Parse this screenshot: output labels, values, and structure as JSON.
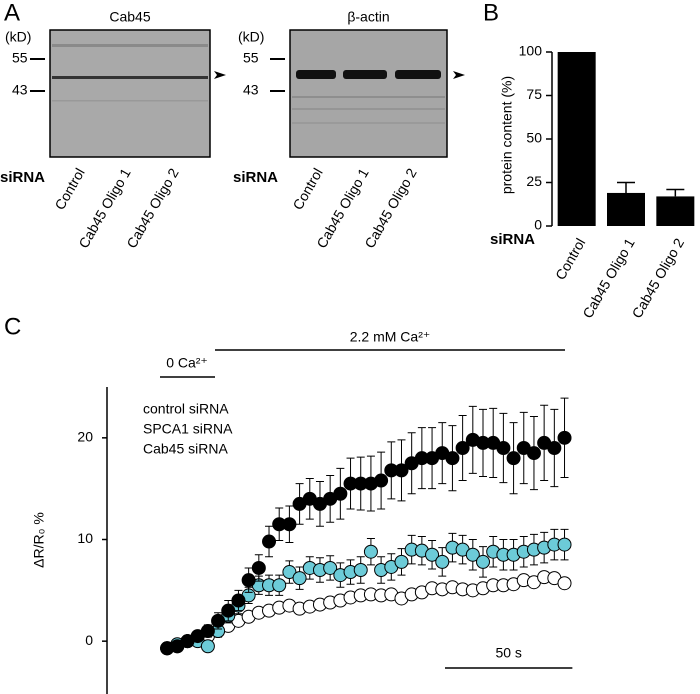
{
  "panel_labels": [
    "A",
    "B",
    "C"
  ],
  "blots": [
    {
      "title": "Cab45",
      "unit": "(kD)",
      "markers": [
        55,
        43
      ],
      "row_label": "siRNA",
      "lanes": [
        "Control",
        "Cab45 Oligo 1",
        "Cab45 Oligo 2"
      ]
    },
    {
      "title": "β-actin",
      "unit": "(kD)",
      "markers": [
        55,
        43
      ],
      "row_label": "siRNA",
      "lanes": [
        "Control",
        "Cab45 Oligo 1",
        "Cab45 Oligo 2"
      ]
    }
  ],
  "chart_data": [
    {
      "type": "bar",
      "y_label": "protein content (%)",
      "row_label": "siRNA",
      "categories": [
        "Control",
        "Cab45 Oligo 1",
        "Cab45 Oligo 2"
      ],
      "values": [
        100,
        19,
        17
      ],
      "errors": [
        null,
        6,
        4
      ],
      "color": "#000000",
      "ylim": [
        0,
        100
      ],
      "yticks": [
        0,
        25,
        50,
        75,
        100
      ]
    },
    {
      "type": "scatter",
      "y_label": "ΔR/R₀ %",
      "annotations": [
        "0 Ca²⁺",
        "2.2 mM Ca²⁺"
      ],
      "scale_bar": {
        "value": 50,
        "label": "50 s"
      },
      "x": [
        0,
        4,
        8,
        12,
        16,
        20,
        24,
        28,
        32,
        36,
        40,
        44,
        48,
        52,
        56,
        60,
        64,
        68,
        72,
        76,
        80,
        84,
        88,
        92,
        96,
        100,
        104,
        108,
        112,
        116,
        120,
        124,
        128,
        132,
        136,
        140,
        144,
        148,
        152,
        156
      ],
      "xlim": [
        -23.6,
        166
      ],
      "ylim": [
        -5,
        25
      ],
      "yticks": [
        0,
        10,
        20
      ],
      "series": [
        {
          "name": "Cab45 siRNA",
          "color": "#ffffff",
          "values": [
            -0.7,
            -0.5,
            0,
            0.2,
            0.5,
            1,
            1.5,
            2,
            2.4,
            2.8,
            3,
            3.3,
            3.5,
            3.2,
            3.4,
            3.6,
            3.8,
            4,
            4.3,
            4.5,
            4.6,
            4.5,
            4.6,
            4.2,
            4.6,
            4.8,
            5.2,
            5.1,
            5.3,
            5.1,
            5,
            5.2,
            5.5,
            5.5,
            5.6,
            6,
            5.8,
            6.3,
            6.2,
            5.7
          ],
          "errors": [
            0.3,
            0.3,
            0.3,
            0.3,
            0.3,
            0.3,
            0.3,
            0.3,
            0.4,
            0.4,
            0.4,
            0.4,
            0.4,
            0.4,
            0.4,
            0.4,
            0.4,
            0.4,
            0.4,
            0.4,
            0.4,
            0.4,
            0.4,
            0.4,
            0.4,
            0.5,
            0.5,
            0.5,
            0.5,
            0.5,
            0.5,
            0.5,
            0.5,
            0.5,
            0.5,
            0.5,
            0.5,
            0.5,
            0.5,
            0.5
          ]
        },
        {
          "name": "SPCA1 siRNA",
          "color": "#6ccbd8",
          "values": [
            -0.7,
            -0.3,
            0,
            0,
            -0.5,
            1,
            2.5,
            3.5,
            4.5,
            5.5,
            5.5,
            5.5,
            6.8,
            6.2,
            7.2,
            7,
            7.2,
            6.5,
            6.8,
            7,
            8.8,
            7,
            7.3,
            7.8,
            9,
            8.9,
            8.5,
            7.8,
            9.2,
            9,
            8.5,
            7.8,
            8.8,
            8.5,
            8.5,
            8.8,
            9,
            9.2,
            9.5,
            9.5
          ],
          "errors": [
            0.3,
            0.3,
            0.4,
            0.4,
            0.5,
            0.6,
            0.7,
            0.8,
            0.8,
            0.9,
            1,
            1,
            1.1,
            1.1,
            1.1,
            1.2,
            1.2,
            1.2,
            1.2,
            1.3,
            1.3,
            1.3,
            1.3,
            1.3,
            1.4,
            1.4,
            1.4,
            1.4,
            1.4,
            1.4,
            1.5,
            1.5,
            1.5,
            1.5,
            1.5,
            1.5,
            1.5,
            1.5,
            1.5,
            1.5
          ]
        },
        {
          "name": "control siRNA",
          "color": "#000000",
          "values": [
            -0.7,
            -0.5,
            0,
            0.5,
            1,
            2,
            3,
            4,
            6,
            7.2,
            9.8,
            11.5,
            11.5,
            13.5,
            14,
            13.5,
            14,
            14.5,
            15.5,
            15.5,
            15.5,
            15.8,
            16.8,
            16.8,
            17.5,
            18,
            18,
            18.5,
            18,
            19,
            19.8,
            19.5,
            19.5,
            19,
            18,
            19,
            18.5,
            19.5,
            19,
            20
          ],
          "errors": [
            0.3,
            0.3,
            0.4,
            0.5,
            0.6,
            0.8,
            1,
            1,
            1.2,
            1.3,
            1.5,
            1.6,
            1.8,
            2,
            2,
            2.2,
            2.3,
            2.5,
            2.5,
            2.6,
            2.7,
            2.8,
            2.8,
            3,
            3,
            3,
            3,
            3,
            3.2,
            3.2,
            3.3,
            3.3,
            3.4,
            3.4,
            3.5,
            3.5,
            3.6,
            3.7,
            3.8,
            3.9
          ]
        }
      ]
    }
  ]
}
